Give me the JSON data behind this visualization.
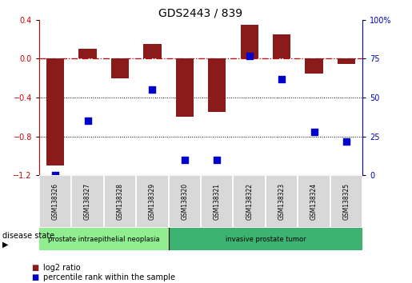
{
  "title": "GDS2443 / 839",
  "samples": [
    "GSM138326",
    "GSM138327",
    "GSM138328",
    "GSM138329",
    "GSM138320",
    "GSM138321",
    "GSM138322",
    "GSM138323",
    "GSM138324",
    "GSM138325"
  ],
  "log2_ratio": [
    -1.1,
    0.1,
    -0.2,
    0.15,
    -0.6,
    -0.55,
    0.35,
    0.25,
    -0.15,
    -0.05
  ],
  "percentile_rank": [
    0,
    35,
    null,
    55,
    10,
    10,
    77,
    62,
    28,
    22
  ],
  "ylim_left": [
    -1.2,
    0.4
  ],
  "ylim_right": [
    0,
    100
  ],
  "bar_color": "#8B1A1A",
  "dot_color": "#0000CC",
  "hline_color": "#CC0000",
  "dotline_color": "#000000",
  "disease_groups": [
    {
      "label": "prostate intraepithelial neoplasia",
      "start": 0,
      "end": 4,
      "color": "#90EE90"
    },
    {
      "label": "invasive prostate tumor",
      "start": 4,
      "end": 10,
      "color": "#3CB371"
    }
  ],
  "legend_items": [
    {
      "label": "log2 ratio",
      "color": "#8B1A1A"
    },
    {
      "label": "percentile rank within the sample",
      "color": "#0000CC"
    }
  ],
  "disease_state_label": "disease state",
  "yticks_left": [
    -1.2,
    -0.8,
    -0.4,
    0.0,
    0.4
  ],
  "yticks_right": [
    0,
    25,
    50,
    75,
    100
  ],
  "bar_width": 0.55,
  "n_samples": 10,
  "fig_width": 5.15,
  "fig_height": 3.54
}
